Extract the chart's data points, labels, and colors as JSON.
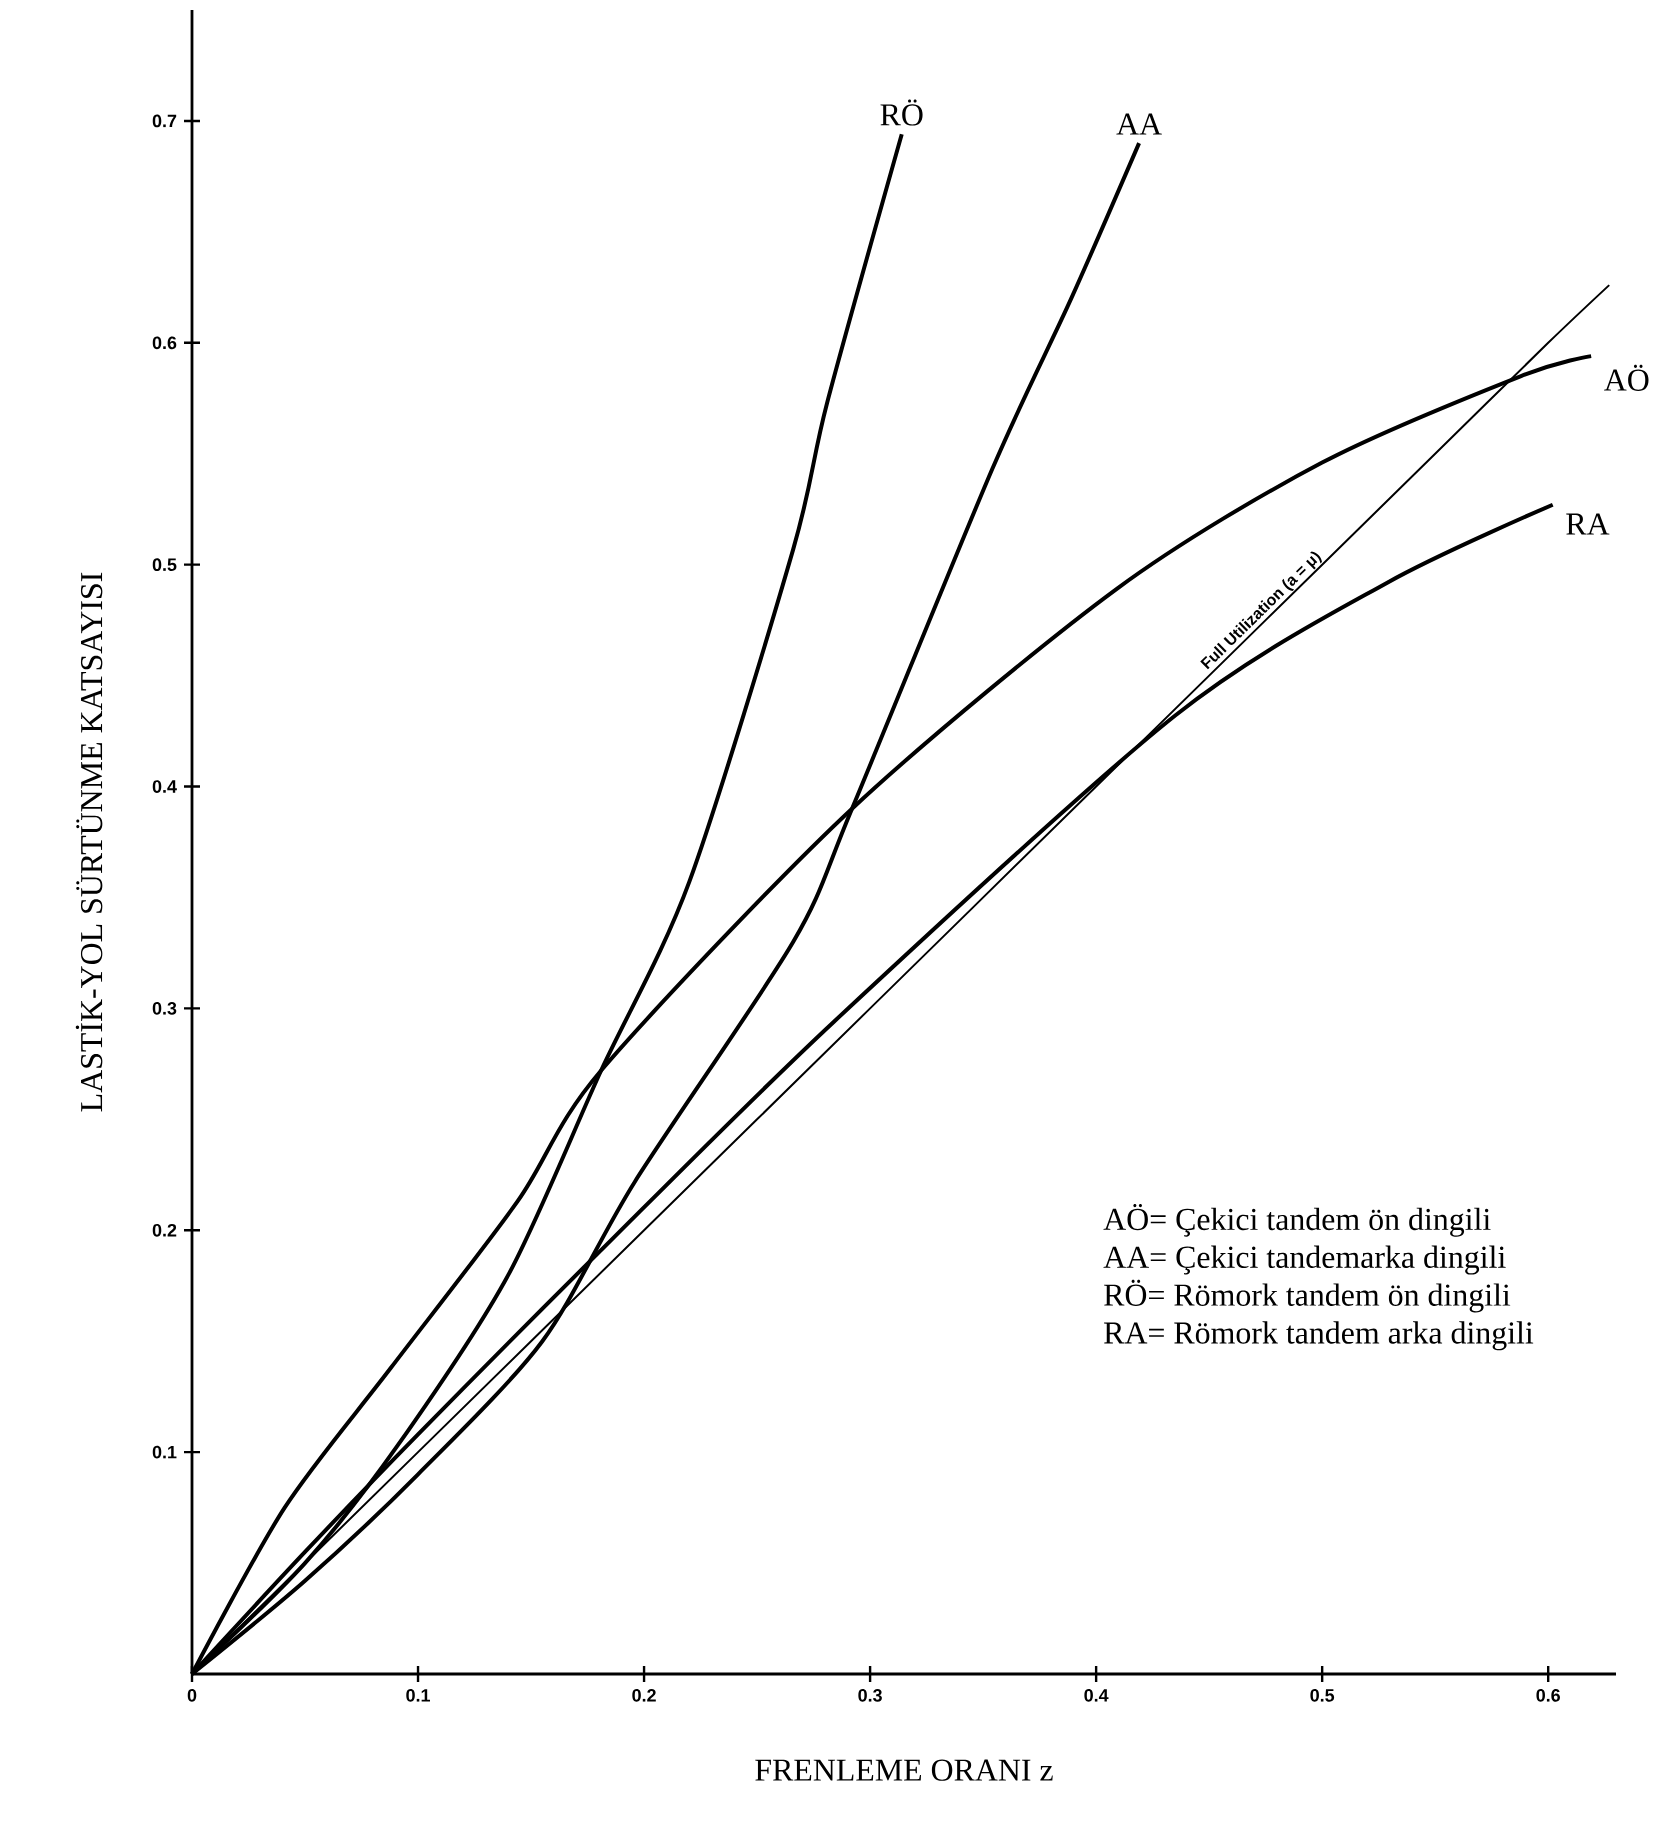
{
  "chart_data": {
    "type": "line",
    "xlabel": "FRENLEME ORANI z",
    "ylabel": "LASTİK-YOL SÜRTÜNME KATSAYISI",
    "xlim": [
      0,
      0.63
    ],
    "ylim": [
      0,
      0.75
    ],
    "xticks": [
      0,
      0.1,
      0.2,
      0.3,
      0.4,
      0.5,
      0.6
    ],
    "yticks": [
      0.1,
      0.2,
      0.3,
      0.4,
      0.5,
      0.6,
      0.7
    ],
    "grid": false,
    "legend": false,
    "marker": "none",
    "line_style": "solid",
    "series": [
      {
        "name": "RÖ",
        "color": "#000000",
        "x": [
          0,
          0.05,
          0.091,
          0.14,
          0.181,
          0.22,
          0.266,
          0.281,
          0.314
        ],
        "values": [
          0,
          0.05,
          0.103,
          0.18,
          0.272,
          0.357,
          0.507,
          0.573,
          0.694
        ]
      },
      {
        "name": "AA",
        "color": "#000000",
        "x": [
          0,
          0.05,
          0.1,
          0.155,
          0.196,
          0.266,
          0.292,
          0.354,
          0.389,
          0.419
        ],
        "values": [
          0,
          0.042,
          0.09,
          0.15,
          0.222,
          0.33,
          0.39,
          0.543,
          0.62,
          0.69
        ]
      },
      {
        "name": "AÖ",
        "color": "#000000",
        "x": [
          0,
          0.041,
          0.088,
          0.144,
          0.181,
          0.292,
          0.409,
          0.5,
          0.588,
          0.619
        ],
        "values": [
          0,
          0.075,
          0.138,
          0.213,
          0.272,
          0.39,
          0.489,
          0.546,
          0.585,
          0.594
        ]
      },
      {
        "name": "RA",
        "color": "#000000",
        "x": [
          0,
          0.05,
          0.1,
          0.179,
          0.284,
          0.435,
          0.529,
          0.602
        ],
        "values": [
          0,
          0.055,
          0.108,
          0.189,
          0.294,
          0.432,
          0.492,
          0.527
        ]
      },
      {
        "name": "Full Utilization (a = μ)",
        "color": "#000000",
        "x": [
          0,
          0.1,
          0.2,
          0.3,
          0.4,
          0.45,
          0.5,
          0.55,
          0.6,
          0.627
        ],
        "values": [
          0,
          0.1,
          0.2,
          0.3,
          0.4,
          0.45,
          0.5,
          0.55,
          0.6,
          0.626
        ]
      }
    ],
    "annotations": [
      "AÖ= Çekici tandem ön dingili",
      "AA= Çekici tandemarka dingili",
      "RÖ= Römork tandem ön dingili",
      "RA= Römork tandem arka dingili"
    ]
  }
}
